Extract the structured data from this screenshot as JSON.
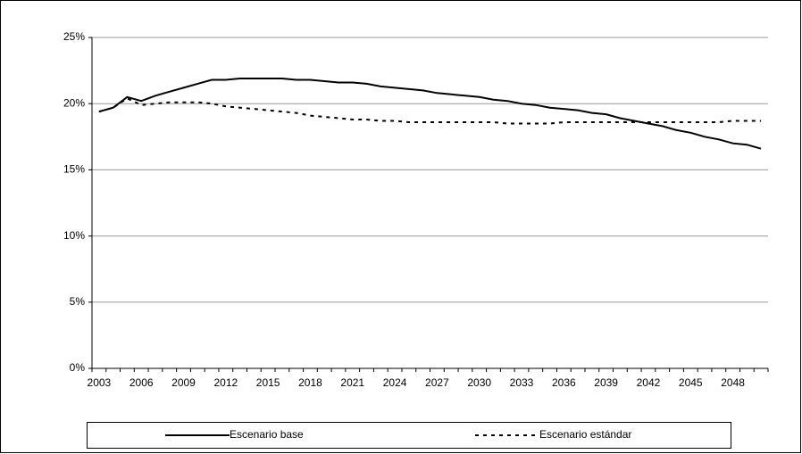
{
  "chart_data": {
    "type": "line",
    "categories": [
      "2003",
      null,
      null,
      "2006",
      null,
      null,
      "2009",
      null,
      null,
      "2012",
      null,
      null,
      "2015",
      null,
      null,
      "2018",
      null,
      null,
      "2021",
      null,
      null,
      "2024",
      null,
      null,
      "2027",
      null,
      null,
      "2030",
      null,
      null,
      "2033",
      null,
      null,
      "2036",
      null,
      null,
      "2039",
      null,
      null,
      "2042",
      null,
      null,
      "2045",
      null,
      null,
      "2048",
      null,
      null
    ],
    "series": [
      {
        "name": "Escenario base",
        "color": "#000000",
        "dash": "solid",
        "values": [
          19.4,
          19.7,
          20.5,
          20.2,
          20.6,
          20.9,
          21.2,
          21.5,
          21.8,
          21.8,
          21.9,
          21.9,
          21.9,
          21.9,
          21.8,
          21.8,
          21.7,
          21.6,
          21.6,
          21.5,
          21.3,
          21.2,
          21.1,
          21.0,
          20.8,
          20.7,
          20.6,
          20.5,
          20.3,
          20.2,
          20.0,
          19.9,
          19.7,
          19.6,
          19.5,
          19.3,
          19.2,
          18.9,
          18.7,
          18.5,
          18.3,
          18.0,
          17.8,
          17.5,
          17.3,
          17.0,
          16.9,
          16.6
        ]
      },
      {
        "name": "Escenario estándar",
        "color": "#000000",
        "dash": "dashed",
        "values": [
          19.4,
          19.7,
          20.4,
          19.9,
          20.0,
          20.1,
          20.1,
          20.1,
          20.0,
          19.8,
          19.7,
          19.6,
          19.5,
          19.4,
          19.3,
          19.1,
          19.0,
          18.9,
          18.8,
          18.8,
          18.7,
          18.7,
          18.6,
          18.6,
          18.6,
          18.6,
          18.6,
          18.6,
          18.6,
          18.5,
          18.5,
          18.5,
          18.5,
          18.6,
          18.6,
          18.6,
          18.6,
          18.6,
          18.6,
          18.6,
          18.6,
          18.6,
          18.6,
          18.6,
          18.6,
          18.7,
          18.7,
          18.7
        ]
      }
    ],
    "ylim": [
      0,
      25
    ],
    "yticks": [
      {
        "value": 0,
        "label": "0%"
      },
      {
        "value": 5,
        "label": "5%"
      },
      {
        "value": 10,
        "label": "10%"
      },
      {
        "value": 15,
        "label": "15%"
      },
      {
        "value": 20,
        "label": "20%"
      },
      {
        "value": 25,
        "label": "25%"
      }
    ],
    "grid": true,
    "legend": "bottom"
  }
}
